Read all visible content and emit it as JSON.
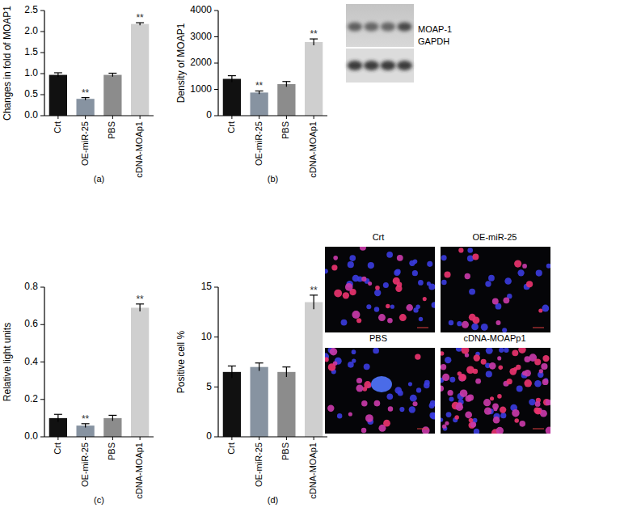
{
  "chart_data": [
    {
      "type": "bar",
      "panel_label": "(a)",
      "ylabel": "Changes in fold of MOAP1",
      "categories": [
        "Crt",
        "OE-miR-25",
        "PBS",
        "cDNA-MOAp1"
      ],
      "values": [
        0.97,
        0.4,
        0.97,
        2.18
      ],
      "error": [
        0.05,
        0.03,
        0.04,
        0.03
      ],
      "significance": [
        null,
        "**",
        null,
        "**"
      ],
      "colors": [
        "#111111",
        "#8793a1",
        "#8c8c8c",
        "#cfcfcf"
      ],
      "ylim": [
        0,
        2.5
      ],
      "yticks": [
        {
          "value": 0,
          "label": "0.0"
        },
        0.5,
        {
          "value": 1,
          "label": "1.0"
        },
        1.5,
        {
          "value": 2,
          "label": "2.0"
        },
        2.5
      ],
      "grid": false
    },
    {
      "type": "bar",
      "panel_label": "(b)",
      "ylabel": "Density of MOAP1",
      "categories": [
        "Crt",
        "OE-miR-25",
        "PBS",
        "cDNA-MOAp1"
      ],
      "values": [
        1400,
        880,
        1200,
        2800
      ],
      "error": [
        120,
        60,
        100,
        120
      ],
      "significance": [
        null,
        "**",
        null,
        "**"
      ],
      "colors": [
        "#111111",
        "#8793a1",
        "#8c8c8c",
        "#cfcfcf"
      ],
      "ylim": [
        0,
        4000
      ],
      "yticks": [
        0,
        1000,
        2000,
        3000,
        4000
      ],
      "grid": false
    },
    {
      "type": "bar",
      "panel_label": "(c)",
      "ylabel": "Relative light units",
      "categories": [
        "Crt",
        "OE-miR-25",
        "PBS",
        "cDNA-MOAp1"
      ],
      "values": [
        0.1,
        0.06,
        0.1,
        0.69
      ],
      "error": [
        0.02,
        0.01,
        0.015,
        0.02
      ],
      "significance": [
        null,
        "**",
        null,
        "**"
      ],
      "colors": [
        "#111111",
        "#8793a1",
        "#8c8c8c",
        "#cfcfcf"
      ],
      "ylim": [
        0,
        0.8
      ],
      "yticks": [
        {
          "value": 0,
          "label": "0.0"
        },
        0.2,
        0.4,
        0.6,
        0.8
      ],
      "grid": false
    },
    {
      "type": "bar",
      "panel_label": "(d)",
      "ylabel": "Positive cell %",
      "categories": [
        "Crt",
        "OE-miR-25",
        "PBS",
        "cDNA-MOAp1"
      ],
      "values": [
        6.5,
        7.0,
        6.5,
        13.5
      ],
      "error": [
        0.6,
        0.4,
        0.5,
        0.7
      ],
      "significance": [
        null,
        null,
        null,
        "**"
      ],
      "colors": [
        "#111111",
        "#8793a1",
        "#8c8c8c",
        "#cfcfcf"
      ],
      "ylim": [
        0,
        15
      ],
      "yticks": [
        0,
        5,
        10,
        15
      ],
      "grid": false
    }
  ],
  "blot": {
    "labels": [
      "MOAP-1",
      "GAPDH"
    ]
  },
  "micrographs": {
    "labels": [
      "Crt",
      "OE-miR-25",
      "PBS",
      "cDNA-MOAPp1"
    ]
  }
}
